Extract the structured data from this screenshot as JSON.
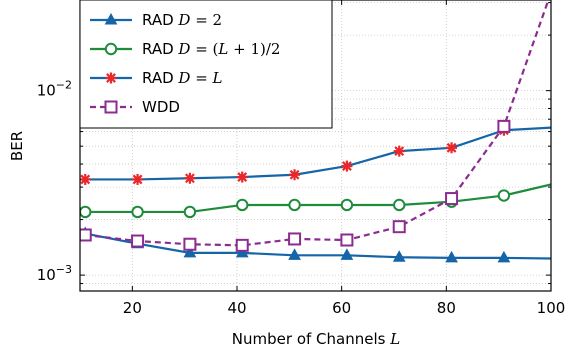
{
  "chart_data": {
    "type": "line",
    "xlabel_prefix": "Number of Channels",
    "xlabel_var": "L",
    "ylabel": "BER",
    "xlim": [
      10,
      100
    ],
    "ylim": [
      0.00082,
      0.031
    ],
    "yscale": "log",
    "xticks": [
      20,
      40,
      60,
      80,
      100
    ],
    "yticks": [
      {
        "value": 0.001,
        "base": "10",
        "exp": "−3"
      },
      {
        "value": 0.01,
        "base": "10",
        "exp": "−2"
      }
    ],
    "grid": "dotted",
    "legend_position": "top-left",
    "x": [
      11,
      21,
      31,
      41,
      51,
      61,
      71,
      81,
      91,
      100
    ],
    "series": [
      {
        "name": "RAD D = 2",
        "legend_parts": [
          [
            "RAD ",
            "plain"
          ],
          [
            "D",
            "math"
          ],
          [
            " = 2",
            "upright"
          ]
        ],
        "color": "#1565a8",
        "style": "solid",
        "marker": "triangle",
        "values": [
          0.00168,
          0.00148,
          0.00132,
          0.00132,
          0.00128,
          0.00128,
          0.00125,
          0.00124,
          0.00124,
          0.00123
        ]
      },
      {
        "name": "RAD D = (L + 1)/2",
        "legend_parts": [
          [
            "RAD ",
            "plain"
          ],
          [
            "D",
            "math"
          ],
          [
            " = (",
            "upright"
          ],
          [
            "L",
            "math"
          ],
          [
            " + 1)/2",
            "upright"
          ]
        ],
        "color": "#1e8c3a",
        "style": "solid",
        "marker": "circle",
        "values": [
          0.0022,
          0.0022,
          0.0022,
          0.0024,
          0.0024,
          0.0024,
          0.0024,
          0.0025,
          0.0027,
          0.0031
        ]
      },
      {
        "name": "RAD D = L",
        "legend_parts": [
          [
            "RAD ",
            "plain"
          ],
          [
            "D",
            "math"
          ],
          [
            " = ",
            "upright"
          ],
          [
            "L",
            "math"
          ]
        ],
        "color": "#1565a8",
        "style": "solid",
        "marker": "star",
        "marker_color": "#e8282b",
        "values": [
          0.0033,
          0.0033,
          0.00335,
          0.0034,
          0.0035,
          0.0039,
          0.0047,
          0.0049,
          0.0061,
          0.0063
        ]
      },
      {
        "name": "WDD",
        "legend_parts": [
          [
            "WDD",
            "plain"
          ]
        ],
        "color": "#8b2c8f",
        "style": "dashed",
        "marker": "square",
        "values": [
          0.00165,
          0.00153,
          0.00147,
          0.00145,
          0.00157,
          0.00155,
          0.00183,
          0.0026,
          0.0064,
          0.034
        ]
      }
    ]
  }
}
